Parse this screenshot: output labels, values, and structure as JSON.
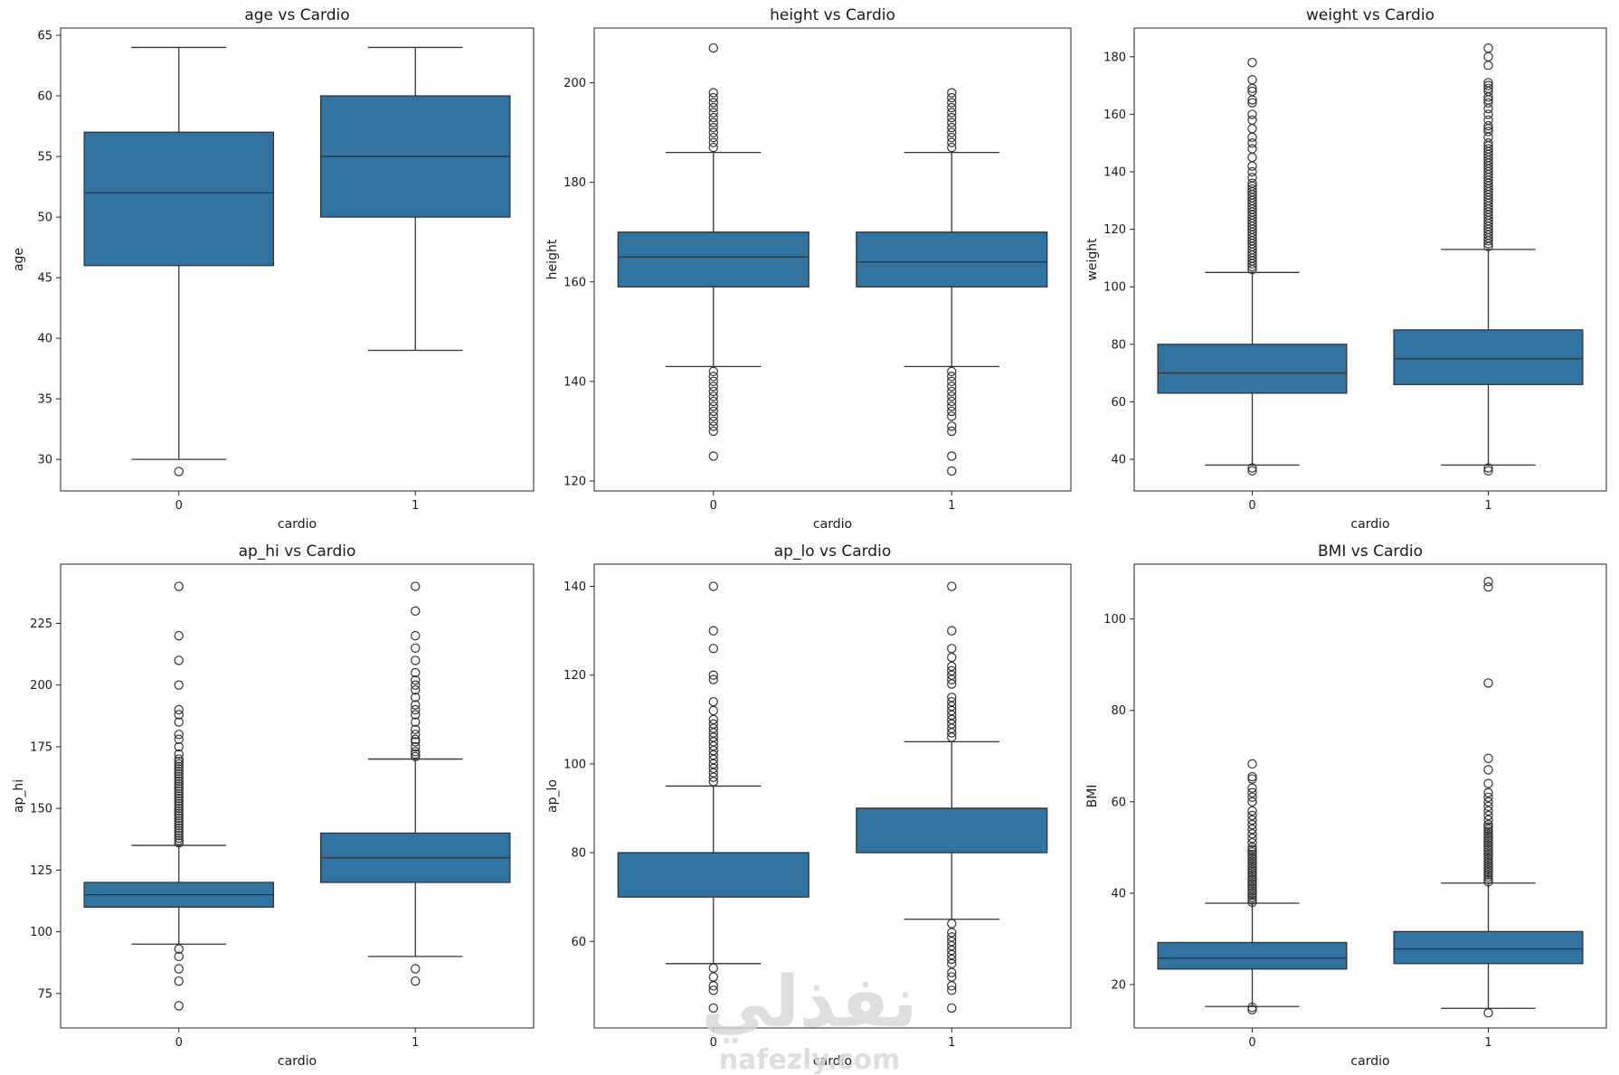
{
  "colors": {
    "box": "#3274a1",
    "line": "#333333"
  },
  "watermark": {
    "arabic": "نفذلي",
    "latin": "nafezly.com"
  },
  "chart_data": [
    {
      "type": "box",
      "title": "age vs Cardio",
      "xlabel": "cardio",
      "ylabel": "age",
      "categories": [
        "0",
        "1"
      ],
      "ylim": [
        27.4,
        65.6
      ],
      "yticks": [
        30,
        35,
        40,
        45,
        50,
        55,
        60,
        65
      ],
      "boxes": [
        {
          "q1": 46,
          "median": 52,
          "q3": 57,
          "whisker_low": 30,
          "whisker_high": 64,
          "outliers": [
            29
          ]
        },
        {
          "q1": 50,
          "median": 55,
          "q3": 60,
          "whisker_low": 39,
          "whisker_high": 64,
          "outliers": []
        }
      ]
    },
    {
      "type": "box",
      "title": "height vs Cardio",
      "xlabel": "cardio",
      "ylabel": "height",
      "categories": [
        "0",
        "1"
      ],
      "ylim": [
        118,
        211
      ],
      "yticks": [
        120,
        140,
        160,
        180,
        200
      ],
      "boxes": [
        {
          "q1": 159,
          "median": 165,
          "q3": 170,
          "whisker_low": 143,
          "whisker_high": 186,
          "outliers": [
            125,
            130,
            131,
            132,
            133,
            134,
            135,
            136,
            137,
            138,
            139,
            140,
            141,
            142,
            187,
            188,
            189,
            190,
            191,
            192,
            193,
            194,
            195,
            196,
            197,
            198,
            207
          ]
        },
        {
          "q1": 159,
          "median": 164,
          "q3": 170,
          "whisker_low": 143,
          "whisker_high": 186,
          "outliers": [
            122,
            125,
            130,
            131,
            133,
            134,
            135,
            136,
            137,
            138,
            139,
            140,
            141,
            142,
            187,
            188,
            189,
            190,
            191,
            192,
            193,
            194,
            195,
            196,
            197,
            198
          ]
        }
      ]
    },
    {
      "type": "box",
      "title": "weight vs Cardio",
      "xlabel": "cardio",
      "ylabel": "weight",
      "categories": [
        "0",
        "1"
      ],
      "ylim": [
        29,
        190
      ],
      "yticks": [
        40,
        60,
        80,
        100,
        120,
        140,
        160,
        180
      ],
      "boxes": [
        {
          "q1": 63,
          "median": 70,
          "q3": 80,
          "whisker_low": 38,
          "whisker_high": 105,
          "outliers": [
            36,
            37,
            106,
            107,
            108,
            109,
            110,
            111,
            112,
            113,
            114,
            115,
            116,
            117,
            118,
            119,
            120,
            121,
            122,
            123,
            124,
            125,
            126,
            127,
            128,
            129,
            130,
            131,
            132,
            133,
            134,
            135,
            136,
            138,
            140,
            142,
            145,
            148,
            150,
            152,
            155,
            158,
            160,
            164,
            165,
            168,
            169,
            172,
            178
          ]
        },
        {
          "q1": 66,
          "median": 75,
          "q3": 85,
          "whisker_low": 38,
          "whisker_high": 113,
          "outliers": [
            36,
            37,
            114,
            115,
            116,
            117,
            118,
            119,
            120,
            121,
            122,
            123,
            124,
            125,
            126,
            127,
            128,
            129,
            130,
            131,
            132,
            133,
            134,
            135,
            136,
            137,
            138,
            139,
            140,
            141,
            142,
            143,
            144,
            145,
            146,
            147,
            148,
            149,
            150,
            152,
            154,
            155,
            156,
            158,
            160,
            162,
            164,
            165,
            166,
            168,
            169,
            170,
            171,
            177,
            180,
            183
          ]
        }
      ]
    },
    {
      "type": "box",
      "title": "ap_hi vs Cardio",
      "xlabel": "cardio",
      "ylabel": "ap_hi",
      "categories": [
        "0",
        "1"
      ],
      "ylim": [
        61,
        249
      ],
      "yticks": [
        75,
        100,
        125,
        150,
        175,
        200,
        225
      ],
      "boxes": [
        {
          "q1": 110,
          "median": 115,
          "q3": 120,
          "whisker_low": 95,
          "whisker_high": 135,
          "outliers": [
            70,
            80,
            85,
            90,
            93,
            136,
            137,
            138,
            139,
            140,
            141,
            142,
            143,
            144,
            145,
            146,
            147,
            148,
            149,
            150,
            151,
            152,
            153,
            154,
            155,
            156,
            157,
            158,
            159,
            160,
            161,
            162,
            163,
            164,
            165,
            166,
            167,
            168,
            169,
            170,
            172,
            175,
            178,
            180,
            185,
            188,
            190,
            200,
            210,
            220,
            240
          ]
        },
        {
          "q1": 120,
          "median": 130,
          "q3": 140,
          "whisker_low": 90,
          "whisker_high": 170,
          "outliers": [
            80,
            85,
            171,
            172,
            173,
            175,
            177,
            178,
            180,
            182,
            185,
            188,
            190,
            192,
            195,
            198,
            200,
            202,
            205,
            210,
            215,
            220,
            230,
            240
          ]
        }
      ]
    },
    {
      "type": "box",
      "title": "ap_lo vs Cardio",
      "xlabel": "cardio",
      "ylabel": "ap_lo",
      "categories": [
        "0",
        "1"
      ],
      "ylim": [
        40.5,
        145
      ],
      "yticks": [
        60,
        80,
        100,
        120,
        140
      ],
      "boxes": [
        {
          "q1": 70,
          "median": 80,
          "q3": 80,
          "whisker_low": 55,
          "whisker_high": 95,
          "outliers": [
            45,
            49,
            50,
            52,
            54,
            96,
            97,
            98,
            99,
            100,
            101,
            102,
            103,
            104,
            105,
            106,
            107,
            108,
            109,
            110,
            112,
            114,
            119,
            120,
            126,
            130,
            140
          ]
        },
        {
          "q1": 80,
          "median": 90,
          "q3": 90,
          "whisker_low": 65,
          "whisker_high": 105,
          "outliers": [
            45,
            49,
            50,
            52,
            53,
            55,
            56,
            57,
            58,
            59,
            60,
            61,
            62,
            64,
            106,
            107,
            108,
            109,
            110,
            111,
            112,
            113,
            114,
            115,
            118,
            119,
            120,
            121,
            122,
            124,
            126,
            130,
            140
          ]
        }
      ]
    },
    {
      "type": "box",
      "title": "BMI vs Cardio",
      "xlabel": "cardio",
      "ylabel": "BMI",
      "categories": [
        "0",
        "1"
      ],
      "ylim": [
        10.5,
        112
      ],
      "yticks": [
        20,
        40,
        60,
        80,
        100
      ],
      "boxes": [
        {
          "q1": 23.4,
          "median": 25.8,
          "q3": 29.2,
          "whisker_low": 15.2,
          "whisker_high": 37.8,
          "outliers": [
            14.5,
            15,
            38,
            38.5,
            39,
            39.5,
            40,
            40.5,
            41,
            41.5,
            42,
            42.5,
            43,
            43.5,
            44,
            44.5,
            45,
            45.5,
            46,
            46.5,
            47,
            47.5,
            48,
            48.5,
            49,
            49.5,
            50,
            51,
            52,
            53,
            54,
            55,
            56,
            57,
            58,
            60,
            61,
            62,
            63,
            65,
            65.5,
            68.3
          ]
        },
        {
          "q1": 24.6,
          "median": 27.8,
          "q3": 31.6,
          "whisker_low": 14.8,
          "whisker_high": 42.2,
          "outliers": [
            13.8,
            42.5,
            43,
            43.5,
            44,
            44.5,
            45,
            45.5,
            46,
            46.5,
            47,
            47.5,
            48,
            48.5,
            49,
            49.5,
            50,
            50.5,
            51,
            51.5,
            52,
            52.5,
            53,
            53.5,
            54,
            54.5,
            55,
            56,
            57,
            58,
            59,
            60,
            61,
            62,
            64,
            67,
            69.5,
            86,
            107,
            108.2
          ]
        }
      ]
    }
  ]
}
